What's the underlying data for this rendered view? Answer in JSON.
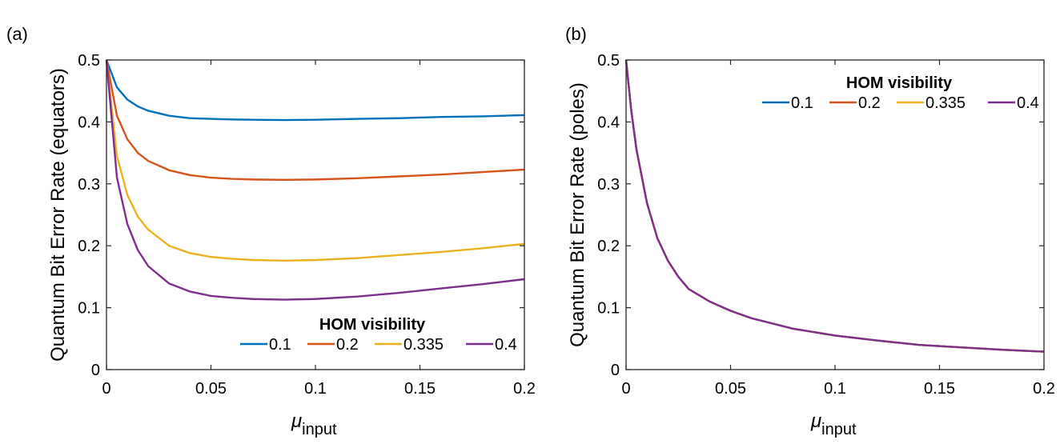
{
  "colors": {
    "series1": "#0072BD",
    "series2": "#D95319",
    "series3": "#EDB120",
    "series4": "#7E2F8E"
  },
  "chart_data": [
    {
      "type": "line",
      "panel_label": "(a)",
      "title": "",
      "xlabel": "μ",
      "xlabel_sub": "input",
      "ylabel": "Quantum Bit Error Rate (equators)",
      "xlim": [
        0,
        0.2
      ],
      "ylim": [
        0,
        0.5
      ],
      "xticks": [
        0,
        0.05,
        0.1,
        0.15,
        0.2
      ],
      "xtick_labels": [
        "0",
        "0.05",
        "0.1",
        "0.15",
        "0.2"
      ],
      "yticks": [
        0,
        0.1,
        0.2,
        0.3,
        0.4,
        0.5
      ],
      "ytick_labels": [
        "0",
        "0.1",
        "0.2",
        "0.3",
        "0.4",
        "0.5"
      ],
      "legend": {
        "title": "HOM visibility",
        "placement": "bottom-right"
      },
      "x": [
        0,
        0.005,
        0.01,
        0.015,
        0.02,
        0.03,
        0.04,
        0.05,
        0.06,
        0.07,
        0.085,
        0.1,
        0.12,
        0.14,
        0.16,
        0.18,
        0.2
      ],
      "series": [
        {
          "name": "0.1",
          "color": "#0072BD",
          "values": [
            0.5,
            0.456,
            0.436,
            0.425,
            0.418,
            0.41,
            0.406,
            0.405,
            0.404,
            0.4035,
            0.403,
            0.4035,
            0.405,
            0.406,
            0.408,
            0.409,
            0.411
          ]
        },
        {
          "name": "0.2",
          "color": "#D95319",
          "values": [
            0.5,
            0.41,
            0.372,
            0.35,
            0.337,
            0.322,
            0.314,
            0.31,
            0.308,
            0.307,
            0.3065,
            0.307,
            0.309,
            0.312,
            0.315,
            0.319,
            0.323
          ]
        },
        {
          "name": "0.335",
          "color": "#EDB120",
          "values": [
            0.5,
            0.345,
            0.282,
            0.247,
            0.226,
            0.2,
            0.188,
            0.182,
            0.179,
            0.177,
            0.176,
            0.177,
            0.18,
            0.185,
            0.19,
            0.196,
            0.203
          ]
        },
        {
          "name": "0.4",
          "color": "#7E2F8E",
          "values": [
            0.5,
            0.31,
            0.235,
            0.193,
            0.167,
            0.139,
            0.126,
            0.119,
            0.116,
            0.114,
            0.113,
            0.114,
            0.118,
            0.124,
            0.131,
            0.138,
            0.146
          ]
        }
      ]
    },
    {
      "type": "line",
      "panel_label": "(b)",
      "title": "",
      "xlabel": "μ",
      "xlabel_sub": "input",
      "ylabel": "Quantum Bit Error Rate (poles)",
      "xlim": [
        0,
        0.2
      ],
      "ylim": [
        0,
        0.5
      ],
      "xticks": [
        0,
        0.05,
        0.1,
        0.15,
        0.2
      ],
      "xtick_labels": [
        "0",
        "0.05",
        "0.1",
        "0.15",
        "0.2"
      ],
      "yticks": [
        0,
        0.1,
        0.2,
        0.3,
        0.4,
        0.5
      ],
      "ytick_labels": [
        "0",
        "0.1",
        "0.2",
        "0.3",
        "0.4",
        "0.5"
      ],
      "legend": {
        "title": "HOM visibility",
        "placement": "top-right"
      },
      "x": [
        0,
        0.0025,
        0.005,
        0.01,
        0.015,
        0.02,
        0.025,
        0.03,
        0.04,
        0.05,
        0.06,
        0.08,
        0.1,
        0.12,
        0.14,
        0.16,
        0.18,
        0.2
      ],
      "series": [
        {
          "name": "0.1",
          "color": "#0072BD",
          "values": [
            0.5,
            0.418,
            0.355,
            0.269,
            0.212,
            0.176,
            0.15,
            0.13,
            0.11,
            0.095,
            0.083,
            0.066,
            0.055,
            0.047,
            0.04,
            0.036,
            0.032,
            0.029
          ]
        },
        {
          "name": "0.2",
          "color": "#D95319",
          "values": [
            0.5,
            0.418,
            0.355,
            0.269,
            0.212,
            0.176,
            0.15,
            0.13,
            0.11,
            0.095,
            0.083,
            0.066,
            0.055,
            0.047,
            0.04,
            0.036,
            0.032,
            0.029
          ]
        },
        {
          "name": "0.335",
          "color": "#EDB120",
          "values": [
            0.5,
            0.418,
            0.355,
            0.269,
            0.212,
            0.176,
            0.15,
            0.13,
            0.11,
            0.095,
            0.083,
            0.066,
            0.055,
            0.047,
            0.04,
            0.036,
            0.032,
            0.029
          ]
        },
        {
          "name": "0.4",
          "color": "#7E2F8E",
          "values": [
            0.5,
            0.418,
            0.355,
            0.269,
            0.212,
            0.176,
            0.15,
            0.13,
            0.11,
            0.095,
            0.083,
            0.066,
            0.055,
            0.047,
            0.04,
            0.036,
            0.032,
            0.029
          ]
        }
      ]
    }
  ]
}
